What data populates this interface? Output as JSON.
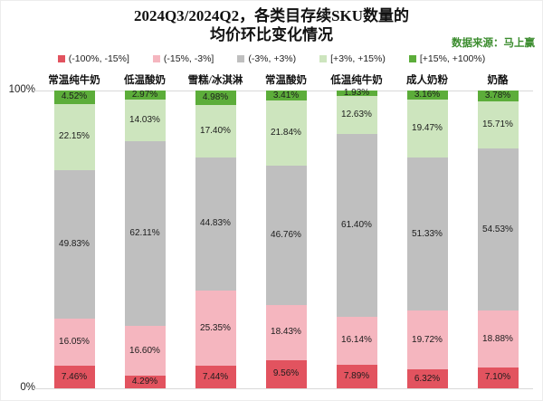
{
  "chart_data": {
    "type": "bar",
    "variant": "stacked-100-percent",
    "title_lines": [
      "2024Q3/2024Q2，各类目存续SKU数量的",
      "均价环比变化情况"
    ],
    "source": "数据来源：马上赢",
    "categories": [
      "常温纯牛奶",
      "低温酸奶",
      "雪糕/冰淇淋",
      "常温酸奶",
      "低温纯牛奶",
      "成人奶粉",
      "奶酪"
    ],
    "series": [
      {
        "name": "(-100%, -15%]",
        "color": "#e2535f",
        "values": [
          7.46,
          4.29,
          7.44,
          9.56,
          7.89,
          6.32,
          7.1
        ]
      },
      {
        "name": "(-15%, -3%]",
        "color": "#f5b6bf",
        "values": [
          16.05,
          16.6,
          25.35,
          18.43,
          16.14,
          19.72,
          18.88
        ]
      },
      {
        "name": "(-3%, +3%)",
        "color": "#bfbfbf",
        "values": [
          49.83,
          62.11,
          44.83,
          46.76,
          61.4,
          51.33,
          54.53
        ]
      },
      {
        "name": "[+3%, +15%)",
        "color": "#cde5be",
        "values": [
          22.15,
          14.03,
          17.4,
          21.84,
          12.63,
          19.47,
          15.71
        ]
      },
      {
        "name": "[+15%, +100%)",
        "color": "#5cad3a",
        "values": [
          4.52,
          2.97,
          4.98,
          3.41,
          1.93,
          3.16,
          3.78
        ]
      }
    ],
    "y_axis": {
      "top": "100%",
      "bottom": "0%",
      "range": [
        0,
        100
      ]
    },
    "legend_position": "top",
    "grid": "top-and-bottom-lines-only",
    "label_format": "two-decimals-percent"
  }
}
